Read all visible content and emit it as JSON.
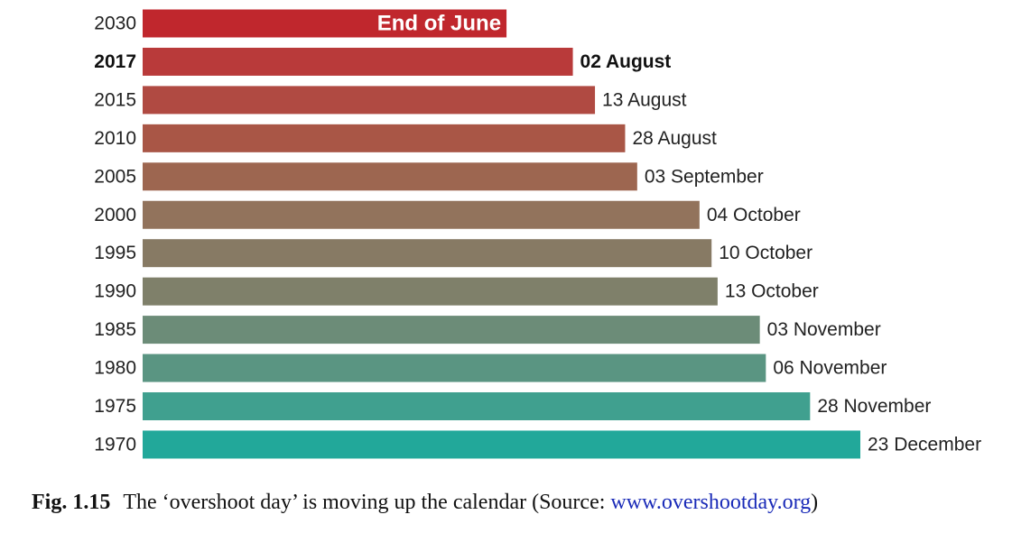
{
  "chart_data": {
    "type": "bar",
    "orientation": "horizontal",
    "title": "",
    "xlabel": "",
    "ylabel": "",
    "categories": [
      "2030",
      "2017",
      "2015",
      "2010",
      "2005",
      "2000",
      "1995",
      "1990",
      "1985",
      "1980",
      "1975",
      "1970"
    ],
    "values": [
      181,
      214,
      225,
      240,
      246,
      277,
      283,
      286,
      307,
      310,
      332,
      357
    ],
    "value_unit": "day of year",
    "xlim": [
      0,
      357
    ],
    "data_labels": [
      "End of June",
      "02 August",
      "13 August",
      "28 August",
      "03 September",
      "04 October",
      "10 October",
      "13 October",
      "03 November",
      "06 November",
      "28 November",
      "23 December"
    ],
    "highlight_category": "2017",
    "projected_category": "2030",
    "colors": [
      "#c0272d",
      "#b93a3a",
      "#b04a42",
      "#a95646",
      "#9d6650",
      "#92735c",
      "#877a64",
      "#7f806a",
      "#6c8c78",
      "#5a9582",
      "#40a08f",
      "#22a89a"
    ],
    "grid": false,
    "legend": "none"
  },
  "caption": {
    "label": "Fig. 1.15",
    "text_before": "The ‘overshoot day’ is moving up the calendar (Source: ",
    "link": "www.overshootday.org",
    "text_after": ")"
  }
}
